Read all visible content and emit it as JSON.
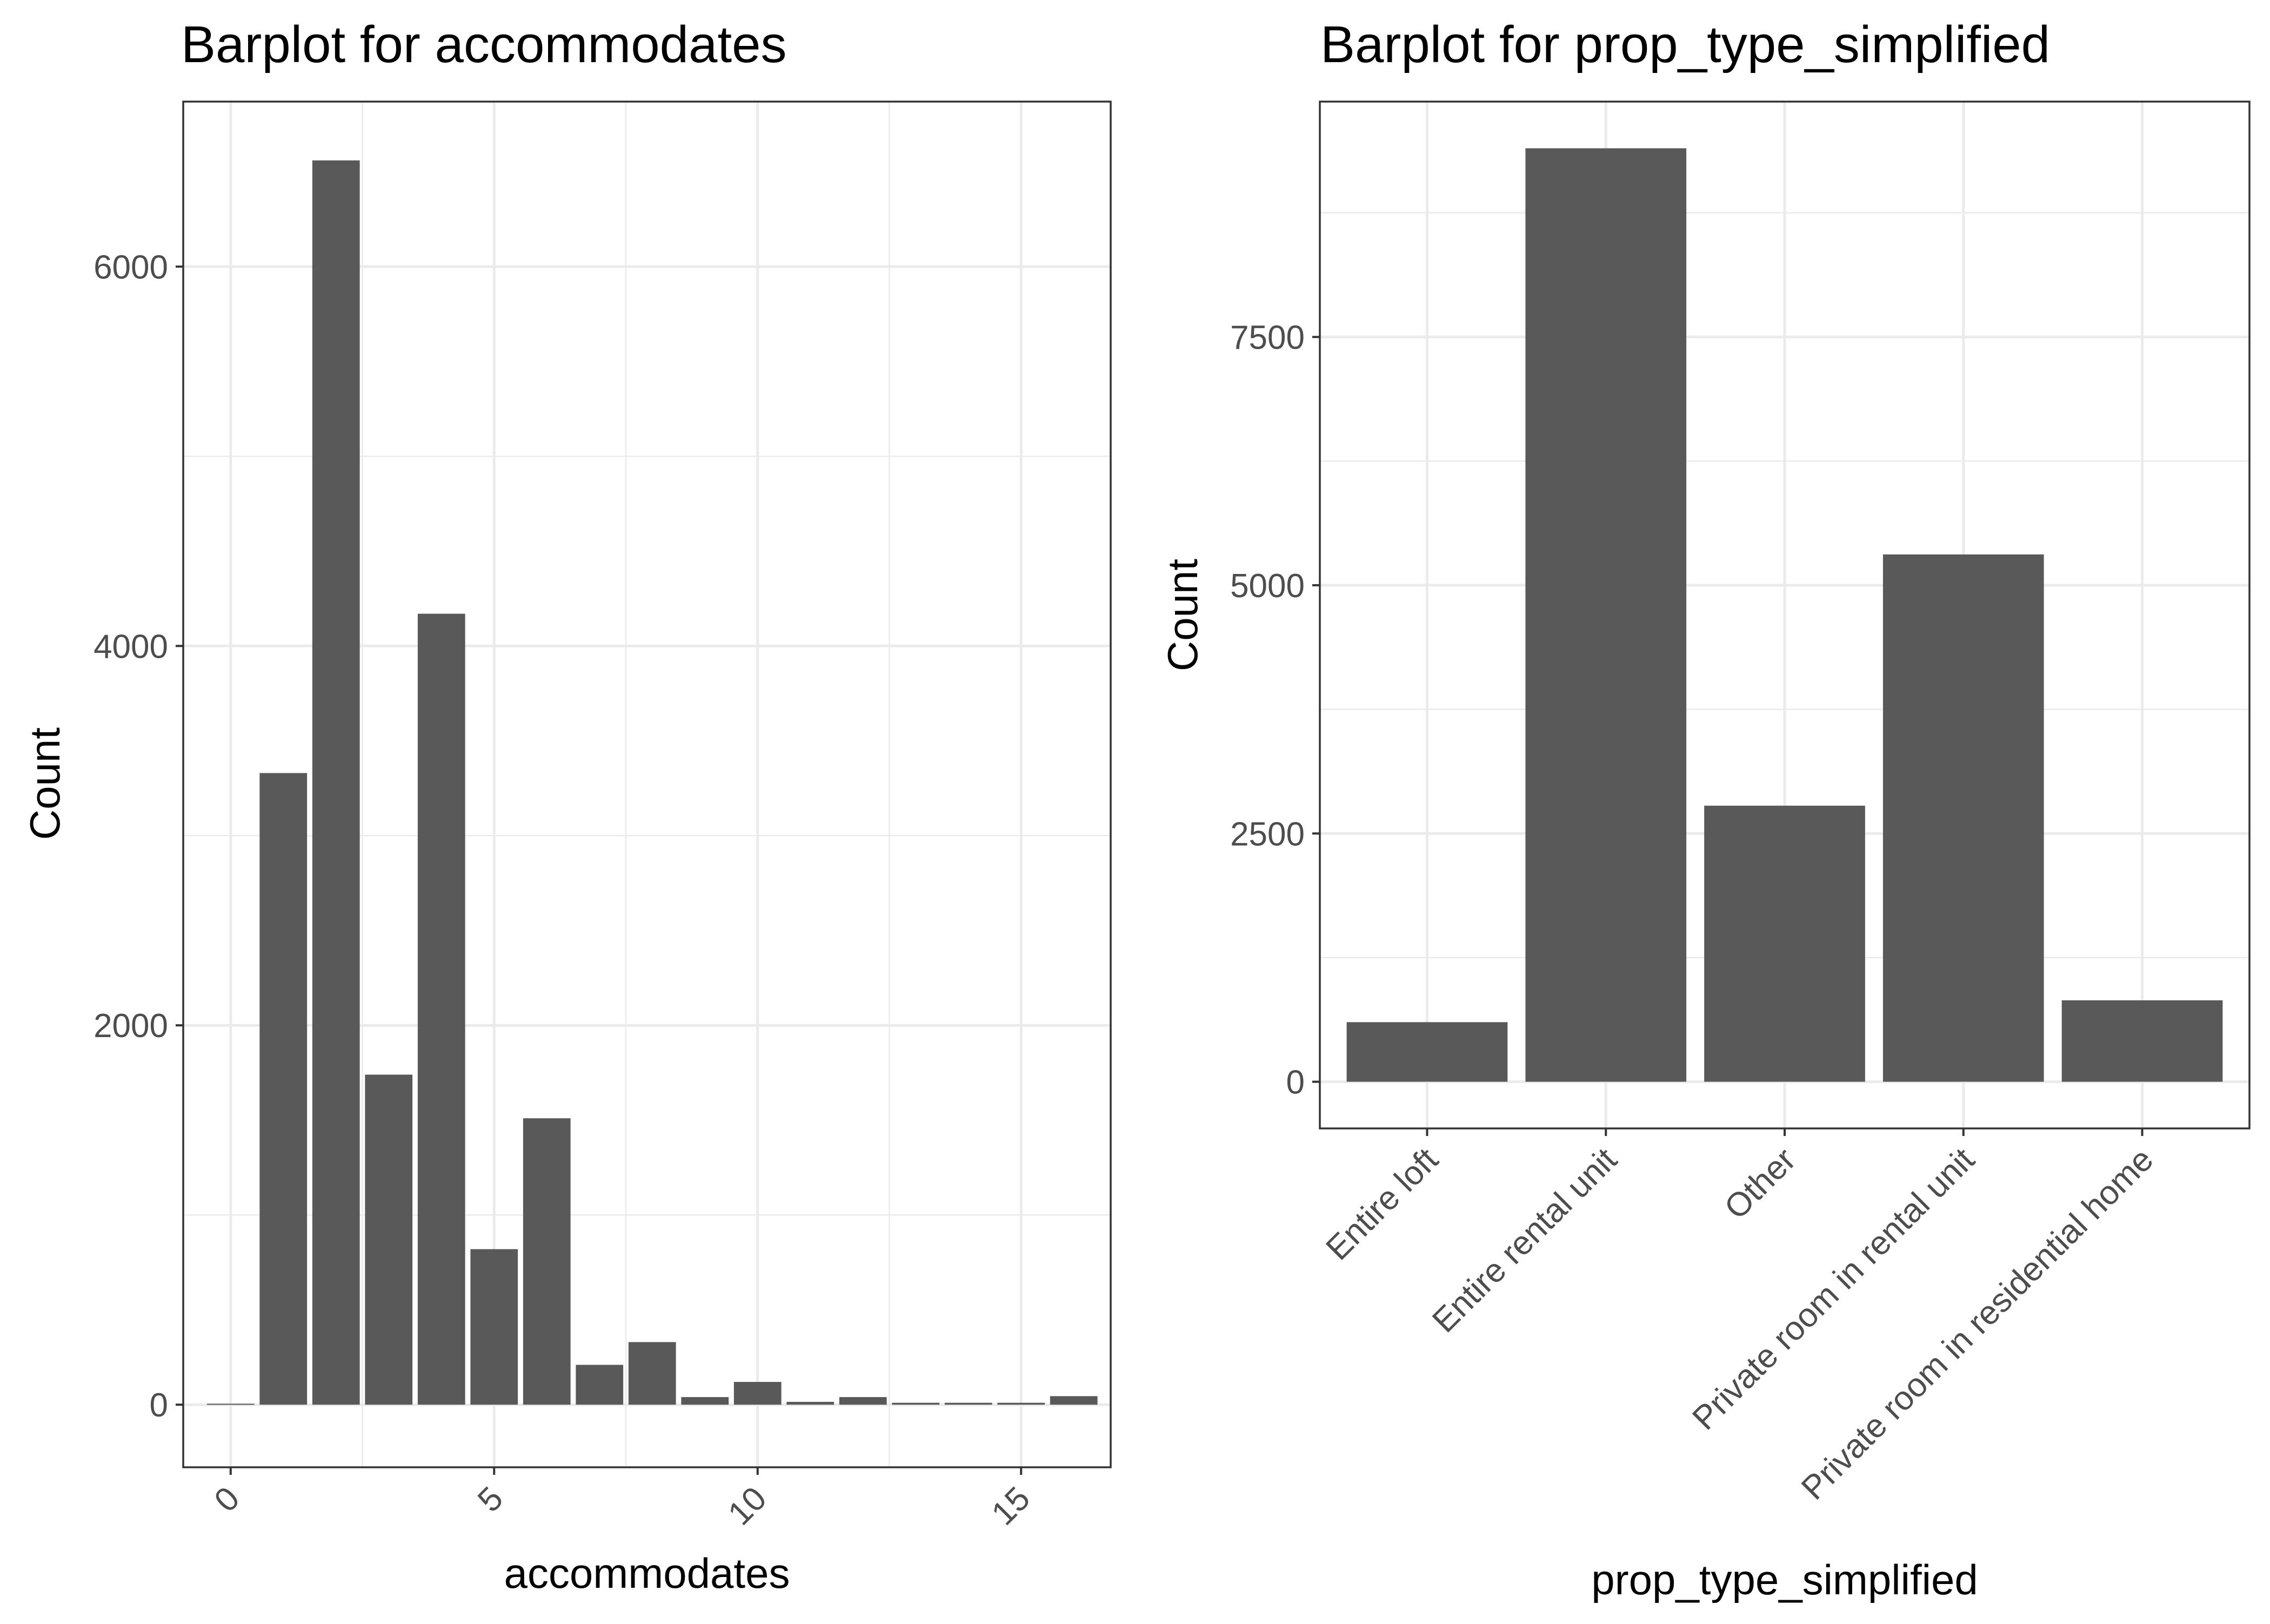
{
  "chart_data": [
    {
      "type": "bar",
      "title": "Barplot for  accommodates",
      "xlabel": "accommodates",
      "ylabel": "Count",
      "x": [
        0,
        1,
        2,
        3,
        4,
        5,
        6,
        7,
        8,
        9,
        10,
        11,
        12,
        13,
        14,
        15,
        16
      ],
      "values": [
        5,
        3330,
        6560,
        1740,
        4170,
        820,
        1510,
        210,
        330,
        40,
        120,
        15,
        40,
        10,
        10,
        10,
        45
      ],
      "xlim": [
        -0.9,
        16.7
      ],
      "ylim": [
        -330,
        6870
      ],
      "xticks": [
        0,
        5,
        10,
        15
      ],
      "yticks": [
        0,
        2000,
        4000,
        6000
      ],
      "bar_color": "#595959",
      "grid": true,
      "xtick_rotation": 45
    },
    {
      "type": "bar",
      "title": "Barplot for  prop_type_simplified",
      "xlabel": "prop_type_simplified",
      "ylabel": "Count",
      "categories": [
        "Entire loft",
        "Entire rental unit",
        "Other",
        "Private room in rental unit",
        "Private room in residential home"
      ],
      "values": [
        600,
        9400,
        2780,
        5310,
        820
      ],
      "ylim": [
        -470,
        9870
      ],
      "yticks": [
        0,
        2500,
        5000,
        7500
      ],
      "bar_color": "#595959",
      "grid": true,
      "xtick_rotation": 45
    }
  ]
}
